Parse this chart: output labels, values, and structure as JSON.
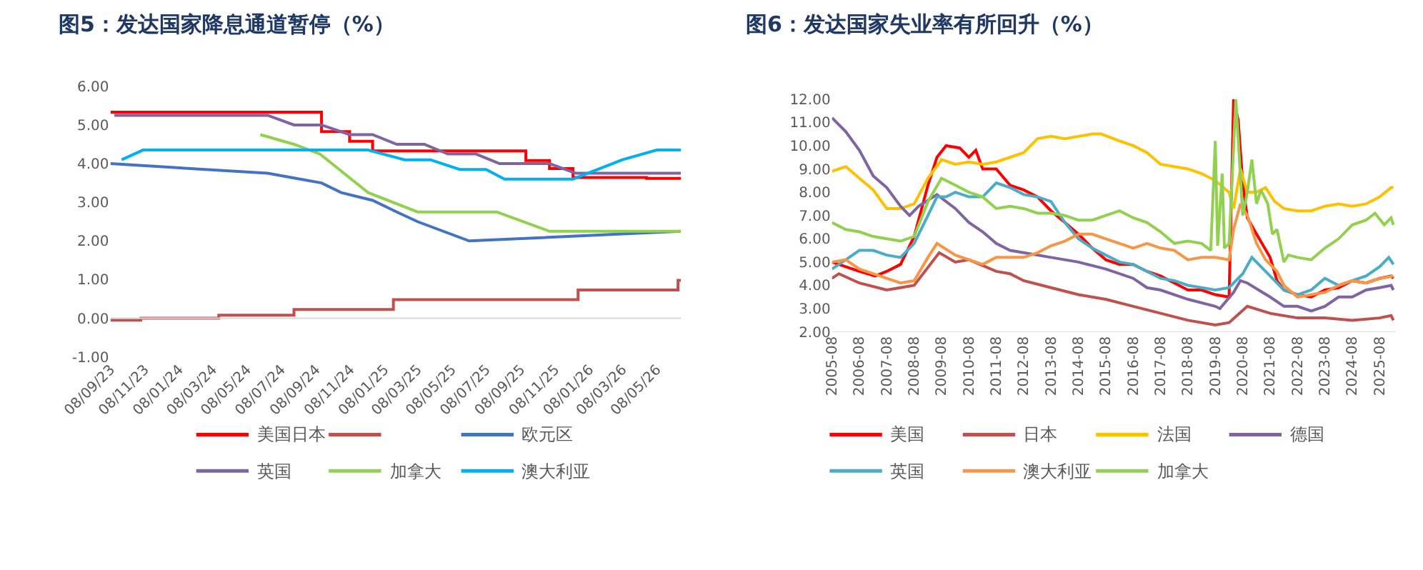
{
  "chart_data": [
    {
      "type": "line",
      "title": "图5：发达国家降息通道暂停（%）",
      "legend": "bottom",
      "xlim": [
        "2023-09-08",
        "2026-06-20"
      ],
      "xticks": [
        {
          "value": "2023-09-08",
          "label": "08/09/23"
        },
        {
          "value": "2023-11-08",
          "label": "08/11/23"
        },
        {
          "value": "2024-01-08",
          "label": "08/01/24"
        },
        {
          "value": "2024-03-08",
          "label": "08/03/24"
        },
        {
          "value": "2024-05-08",
          "label": "08/05/24"
        },
        {
          "value": "2024-07-08",
          "label": "08/07/24"
        },
        {
          "value": "2024-09-08",
          "label": "08/09/24"
        },
        {
          "value": "2024-11-08",
          "label": "08/11/24"
        },
        {
          "value": "2025-01-08",
          "label": "08/01/25"
        },
        {
          "value": "2025-03-08",
          "label": "08/03/25"
        },
        {
          "value": "2025-05-08",
          "label": "08/05/25"
        },
        {
          "value": "2025-07-08",
          "label": "08/07/25"
        },
        {
          "value": "2025-09-08",
          "label": "08/09/25"
        },
        {
          "value": "2025-11-08",
          "label": "08/11/25"
        },
        {
          "value": "2026-01-08",
          "label": "08/01/26"
        },
        {
          "value": "2026-03-08",
          "label": "08/03/26"
        },
        {
          "value": "2026-05-08",
          "label": "08/05/26"
        }
      ],
      "ylim": [
        -1,
        6
      ],
      "yticks": [
        {
          "value": -1,
          "label": "-1.00"
        },
        {
          "value": 0,
          "label": "0.00"
        },
        {
          "value": 1,
          "label": "1.00"
        },
        {
          "value": 2,
          "label": "2.00"
        },
        {
          "value": 3,
          "label": "3.00"
        },
        {
          "value": 4,
          "label": "4.00"
        },
        {
          "value": 5,
          "label": "5.00"
        },
        {
          "value": 6,
          "label": "6.00"
        }
      ],
      "series": [
        {
          "name": "美国日本",
          "type": "step",
          "color": "#ff0000",
          "x": [
            "2023-09-08",
            "2024-09-18",
            "2024-11-07",
            "2024-12-18",
            "2025-09-17",
            "2025-10-29",
            "2025-12-10",
            "2026-04-20",
            "2026-06-20"
          ],
          "values": [
            5.33,
            4.83,
            4.58,
            4.33,
            4.08,
            3.87,
            3.64,
            3.62,
            3.62
          ]
        },
        {
          "type": "step",
          "color": "#c0504d",
          "x": [
            "2023-09-08",
            "2023-11-01",
            "2024-03-19",
            "2024-07-31",
            "2025-01-24",
            "2025-12-19",
            "2026-06-15",
            "2026-06-20"
          ],
          "values": [
            -0.05,
            0.0,
            0.08,
            0.23,
            0.48,
            0.73,
            0.98,
            0.98
          ]
        },
        {
          "name": "欧元区",
          "color": "#4472c4",
          "x": [
            "2023-09-08",
            "2024-06-14",
            "2024-09-18",
            "2024-10-23",
            "2024-12-18",
            "2025-01-30",
            "2025-03-08",
            "2025-06-08",
            "2026-06-20"
          ],
          "values": [
            4.0,
            3.75,
            3.5,
            3.25,
            3.05,
            2.75,
            2.5,
            2.0,
            2.25
          ]
        },
        {
          "name": "英国",
          "color": "#8064a2",
          "x": [
            "2023-09-15",
            "2024-06-14",
            "2024-07-31",
            "2024-09-18",
            "2024-11-07",
            "2024-12-18",
            "2025-01-30",
            "2025-03-20",
            "2025-05-01",
            "2025-06-20",
            "2025-08-01",
            "2025-10-29",
            "2025-12-15",
            "2026-06-20"
          ],
          "values": [
            5.25,
            5.25,
            5.0,
            5.0,
            4.75,
            4.75,
            4.5,
            4.5,
            4.25,
            4.25,
            4.0,
            4.0,
            3.75,
            3.75
          ]
        },
        {
          "name": "加拿大",
          "color": "#92d050",
          "x": [
            "2024-06-01",
            "2024-07-31",
            "2024-09-15",
            "2024-12-10",
            "2025-03-08",
            "2025-07-27",
            "2025-10-29",
            "2026-06-20"
          ],
          "values": [
            4.75,
            4.5,
            4.25,
            3.25,
            2.75,
            2.75,
            2.25,
            2.25
          ]
        },
        {
          "name": "澳大利亚",
          "color": "#00b0f0",
          "x": [
            "2023-09-28",
            "2023-11-05",
            "2024-12-10",
            "2025-02-13",
            "2025-03-31",
            "2025-05-22",
            "2025-07-08",
            "2025-08-10",
            "2025-12-10",
            "2026-03-08",
            "2026-05-08",
            "2026-06-20"
          ],
          "values": [
            4.1,
            4.35,
            4.35,
            4.1,
            4.1,
            3.85,
            3.85,
            3.6,
            3.6,
            4.1,
            4.35,
            4.35
          ]
        }
      ]
    },
    {
      "type": "line",
      "title": "图6：发达国家失业率有所回升（%）",
      "legend": "bottom",
      "xlim": [
        "2005-08",
        "2026-03"
      ],
      "xticks": [
        "2005-08",
        "2006-08",
        "2007-08",
        "2008-08",
        "2009-08",
        "2010-08",
        "2011-08",
        "2012-08",
        "2013-08",
        "2014-08",
        "2015-08",
        "2016-08",
        "2017-08",
        "2018-08",
        "2019-08",
        "2020-08",
        "2021-08",
        "2022-08",
        "2023-08",
        "2024-08",
        "2025-08"
      ],
      "ylim": [
        2,
        12
      ],
      "yticks": [
        {
          "value": 2,
          "label": "2.00"
        },
        {
          "value": 3,
          "label": "3.00"
        },
        {
          "value": 4,
          "label": "4.00"
        },
        {
          "value": 5,
          "label": "5.00"
        },
        {
          "value": 6,
          "label": "6.00"
        },
        {
          "value": 7,
          "label": "7.00"
        },
        {
          "value": 8,
          "label": "8.00"
        },
        {
          "value": 9,
          "label": "9.00"
        },
        {
          "value": 10,
          "label": "10.00"
        },
        {
          "value": 11,
          "label": "11.00"
        },
        {
          "value": 12,
          "label": "12.00"
        }
      ],
      "series": [
        {
          "name": "美国",
          "color": "#ff0000",
          "x": [
            "2005-08",
            "2006-08",
            "2007-03",
            "2007-08",
            "2008-02",
            "2008-08",
            "2009-02",
            "2009-06",
            "2009-10",
            "2010-04",
            "2010-08",
            "2010-11",
            "2011-02",
            "2011-08",
            "2012-02",
            "2012-08",
            "2013-02",
            "2013-08",
            "2014-02",
            "2014-08",
            "2015-02",
            "2015-08",
            "2016-02",
            "2016-08",
            "2017-02",
            "2017-08",
            "2018-02",
            "2018-08",
            "2019-02",
            "2019-08",
            "2020-02",
            "2020-04",
            "2020-06",
            "2020-08",
            "2020-10",
            "2021-02",
            "2021-08",
            "2021-11",
            "2022-02",
            "2022-08",
            "2023-02",
            "2023-08",
            "2024-02",
            "2024-08",
            "2025-02",
            "2025-08",
            "2026-01",
            "2026-02"
          ],
          "values": [
            5.0,
            4.6,
            4.4,
            4.6,
            4.9,
            6.1,
            8.3,
            9.5,
            10.0,
            9.9,
            9.5,
            9.8,
            9.0,
            9.0,
            8.3,
            8.1,
            7.8,
            7.2,
            6.7,
            6.2,
            5.6,
            5.1,
            4.9,
            4.9,
            4.6,
            4.4,
            4.1,
            3.8,
            3.8,
            3.6,
            3.5,
            12.0,
            11.1,
            8.4,
            6.9,
            6.2,
            5.2,
            4.2,
            3.8,
            3.6,
            3.5,
            3.8,
            3.9,
            4.2,
            4.1,
            4.3,
            4.4,
            4.3
          ]
        },
        {
          "name": "日本",
          "color": "#c0504d",
          "x": [
            "2005-08",
            "2005-11",
            "2006-08",
            "2007-08",
            "2008-02",
            "2008-08",
            "2009-07",
            "2010-02",
            "2010-08",
            "2011-08",
            "2012-02",
            "2012-08",
            "2013-08",
            "2014-08",
            "2015-08",
            "2016-08",
            "2017-08",
            "2018-08",
            "2019-08",
            "2020-02",
            "2020-10",
            "2021-08",
            "2022-08",
            "2023-08",
            "2024-08",
            "2025-08",
            "2026-01",
            "2026-02"
          ],
          "values": [
            4.3,
            4.5,
            4.1,
            3.8,
            3.9,
            4.0,
            5.4,
            5.0,
            5.1,
            4.6,
            4.5,
            4.2,
            3.9,
            3.6,
            3.4,
            3.1,
            2.8,
            2.5,
            2.3,
            2.4,
            3.1,
            2.8,
            2.6,
            2.6,
            2.5,
            2.6,
            2.7,
            2.5
          ]
        },
        {
          "name": "法国",
          "color": "#ffc000",
          "x": [
            "2005-08",
            "2006-02",
            "2006-08",
            "2007-02",
            "2007-08",
            "2008-02",
            "2008-08",
            "2009-02",
            "2009-08",
            "2010-02",
            "2010-08",
            "2011-02",
            "2011-08",
            "2012-08",
            "2013-02",
            "2013-08",
            "2014-02",
            "2014-08",
            "2015-02",
            "2015-06",
            "2016-02",
            "2016-08",
            "2017-02",
            "2017-08",
            "2018-08",
            "2019-02",
            "2019-08",
            "2020-02",
            "2020-04",
            "2020-07",
            "2020-10",
            "2021-02",
            "2021-06",
            "2021-10",
            "2022-02",
            "2022-08",
            "2023-02",
            "2023-08",
            "2024-02",
            "2024-08",
            "2025-02",
            "2025-08",
            "2026-01",
            "2026-02"
          ],
          "values": [
            8.9,
            9.1,
            8.6,
            8.1,
            7.3,
            7.3,
            7.5,
            8.6,
            9.4,
            9.2,
            9.3,
            9.2,
            9.3,
            9.7,
            10.3,
            10.4,
            10.3,
            10.4,
            10.5,
            10.5,
            10.2,
            10.0,
            9.7,
            9.2,
            9.0,
            8.8,
            8.5,
            8.0,
            7.3,
            9.0,
            8.0,
            8.0,
            8.2,
            7.6,
            7.3,
            7.2,
            7.2,
            7.4,
            7.5,
            7.4,
            7.5,
            7.8,
            8.2,
            8.2
          ]
        },
        {
          "name": "德国",
          "color": "#8064a2",
          "x": [
            "2005-08",
            "2006-02",
            "2006-08",
            "2007-02",
            "2007-08",
            "2008-02",
            "2008-06",
            "2008-10",
            "2009-06",
            "2010-02",
            "2010-08",
            "2011-02",
            "2011-08",
            "2012-02",
            "2012-08",
            "2013-08",
            "2014-08",
            "2015-08",
            "2016-08",
            "2017-02",
            "2017-08",
            "2018-08",
            "2019-08",
            "2019-10",
            "2020-04",
            "2020-07",
            "2020-10",
            "2021-08",
            "2022-02",
            "2022-08",
            "2023-02",
            "2023-08",
            "2024-02",
            "2024-08",
            "2025-02",
            "2025-08",
            "2026-01",
            "2026-02"
          ],
          "values": [
            11.2,
            10.6,
            9.8,
            8.7,
            8.2,
            7.4,
            7.0,
            7.4,
            7.9,
            7.3,
            6.7,
            6.3,
            5.8,
            5.5,
            5.4,
            5.2,
            5.0,
            4.7,
            4.3,
            3.9,
            3.8,
            3.4,
            3.1,
            3.0,
            3.7,
            4.2,
            4.1,
            3.5,
            3.1,
            3.1,
            2.9,
            3.1,
            3.5,
            3.5,
            3.8,
            3.9,
            4.0,
            3.8
          ]
        },
        {
          "name": "英国",
          "color": "#4bacc6",
          "x": [
            "2005-08",
            "2006-02",
            "2006-08",
            "2007-02",
            "2007-08",
            "2008-02",
            "2008-08",
            "2009-02",
            "2009-06",
            "2009-10",
            "2010-02",
            "2010-08",
            "2011-02",
            "2011-08",
            "2012-02",
            "2012-08",
            "2013-02",
            "2013-08",
            "2014-02",
            "2014-08",
            "2015-02",
            "2015-08",
            "2016-02",
            "2016-08",
            "2017-02",
            "2017-08",
            "2018-02",
            "2018-08",
            "2019-02",
            "2019-08",
            "2020-02",
            "2020-08",
            "2020-12",
            "2021-04",
            "2021-08",
            "2022-02",
            "2022-08",
            "2023-02",
            "2023-08",
            "2024-02",
            "2024-08",
            "2025-02",
            "2025-08",
            "2025-12",
            "2026-02"
          ],
          "values": [
            4.7,
            5.1,
            5.5,
            5.5,
            5.3,
            5.2,
            5.8,
            7.0,
            7.8,
            7.8,
            8.0,
            7.8,
            7.8,
            8.4,
            8.2,
            7.9,
            7.8,
            7.6,
            6.7,
            6.0,
            5.6,
            5.3,
            5.0,
            4.9,
            4.6,
            4.3,
            4.2,
            4.0,
            3.9,
            3.8,
            3.9,
            4.5,
            5.2,
            4.8,
            4.4,
            3.8,
            3.6,
            3.8,
            4.3,
            4.0,
            4.2,
            4.4,
            4.8,
            5.2,
            4.9
          ]
        },
        {
          "name": "澳大利亚",
          "color": "#f79646",
          "x": [
            "2005-08",
            "2006-02",
            "2006-08",
            "2007-02",
            "2007-08",
            "2008-02",
            "2008-08",
            "2009-02",
            "2009-06",
            "2010-02",
            "2010-08",
            "2011-02",
            "2011-08",
            "2012-08",
            "2013-02",
            "2013-08",
            "2014-02",
            "2014-08",
            "2015-02",
            "2015-08",
            "2016-02",
            "2016-08",
            "2017-02",
            "2017-08",
            "2018-02",
            "2018-08",
            "2019-02",
            "2019-08",
            "2020-02",
            "2020-04",
            "2020-07",
            "2020-10",
            "2021-02",
            "2021-06",
            "2021-11",
            "2022-02",
            "2022-08",
            "2023-02",
            "2023-08",
            "2024-02",
            "2024-08",
            "2025-02",
            "2025-08",
            "2026-02"
          ],
          "values": [
            5.0,
            5.1,
            4.7,
            4.5,
            4.3,
            4.1,
            4.2,
            5.2,
            5.8,
            5.3,
            5.1,
            4.9,
            5.2,
            5.2,
            5.4,
            5.7,
            5.9,
            6.2,
            6.2,
            6.0,
            5.8,
            5.6,
            5.8,
            5.6,
            5.5,
            5.1,
            5.2,
            5.2,
            5.1,
            6.4,
            7.5,
            7.0,
            5.8,
            5.1,
            4.6,
            4.0,
            3.5,
            3.6,
            3.7,
            4.0,
            4.2,
            4.1,
            4.3,
            4.4
          ]
        },
        {
          "name": "加拿大",
          "color": "#92d050",
          "x": [
            "2005-08",
            "2006-02",
            "2006-08",
            "2007-02",
            "2007-08",
            "2008-02",
            "2008-08",
            "2009-02",
            "2009-08",
            "2010-02",
            "2010-08",
            "2011-02",
            "2011-08",
            "2012-02",
            "2012-08",
            "2013-02",
            "2013-08",
            "2014-02",
            "2014-08",
            "2015-02",
            "2015-08",
            "2016-02",
            "2016-08",
            "2017-02",
            "2017-08",
            "2018-02",
            "2018-08",
            "2019-02",
            "2019-06",
            "2019-08",
            "2019-09",
            "2019-11",
            "2019-12",
            "2020-02",
            "2020-05",
            "2020-08",
            "2020-10",
            "2020-12",
            "2021-02",
            "2021-04",
            "2021-07",
            "2021-09",
            "2021-11",
            "2022-02",
            "2022-04",
            "2022-08",
            "2023-02",
            "2023-08",
            "2024-02",
            "2024-08",
            "2025-02",
            "2025-06",
            "2025-10",
            "2026-01",
            "2026-02"
          ],
          "values": [
            6.7,
            6.4,
            6.3,
            6.1,
            6.0,
            5.9,
            6.1,
            7.6,
            8.6,
            8.3,
            8.0,
            7.8,
            7.3,
            7.4,
            7.3,
            7.1,
            7.1,
            7.0,
            6.8,
            6.8,
            7.0,
            7.2,
            6.9,
            6.7,
            6.3,
            5.8,
            5.9,
            5.8,
            5.5,
            10.2,
            5.7,
            8.8,
            5.6,
            5.8,
            12.0,
            7.0,
            8.0,
            9.4,
            7.5,
            8.1,
            7.5,
            6.2,
            6.4,
            5.0,
            5.3,
            5.2,
            5.1,
            5.6,
            6.0,
            6.6,
            6.8,
            7.1,
            6.6,
            6.9,
            6.6
          ]
        }
      ]
    }
  ]
}
